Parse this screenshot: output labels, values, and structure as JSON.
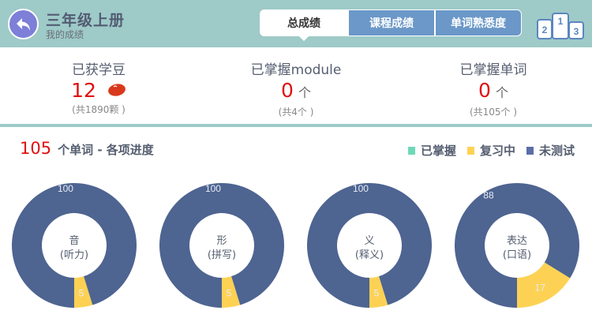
{
  "header": {
    "title": "三年级上册",
    "subtitle": "我的成绩",
    "back_icon": "back-arrow-icon",
    "tabs": [
      {
        "label": "总成绩",
        "active": true
      },
      {
        "label": "课程成绩"
      },
      {
        "label": "单词熟悉度"
      }
    ],
    "podium_icon": "ranking-podium-icon",
    "podium_labels": [
      "2",
      "1",
      "3"
    ]
  },
  "stats": [
    {
      "label": "已获学豆",
      "value": "12",
      "unit": "",
      "icon": "bean-icon",
      "sub": "(共1890颗 )"
    },
    {
      "label": "已掌握module",
      "value": "0",
      "unit": "个",
      "sub": "(共4个 )"
    },
    {
      "label": "已掌握单词",
      "value": "0",
      "unit": "个",
      "sub": "(共105个 )"
    }
  ],
  "section": {
    "count": "105",
    "title": "个单词 - 各项进度"
  },
  "colors": {
    "mastered": "#6fd8b8",
    "reviewing": "#fdd254",
    "untested": "#4e6491",
    "accent": "#e01010",
    "header": "#9ecac8"
  },
  "chart_data": {
    "type": "pie",
    "legend": [
      "已掌握",
      "复习中",
      "未测试"
    ],
    "legend_placement": "top-right",
    "charts": [
      {
        "label": "音",
        "sublabel": "(听力)",
        "mastered": 0,
        "reviewing": 5,
        "untested": 100
      },
      {
        "label": "形",
        "sublabel": "(拼写)",
        "mastered": 0,
        "reviewing": 5,
        "untested": 100
      },
      {
        "label": "义",
        "sublabel": "(释义)",
        "mastered": 0,
        "reviewing": 5,
        "untested": 100
      },
      {
        "label": "表达",
        "sublabel": "(口语)",
        "mastered": 0,
        "reviewing": 17,
        "untested": 88
      }
    ]
  }
}
